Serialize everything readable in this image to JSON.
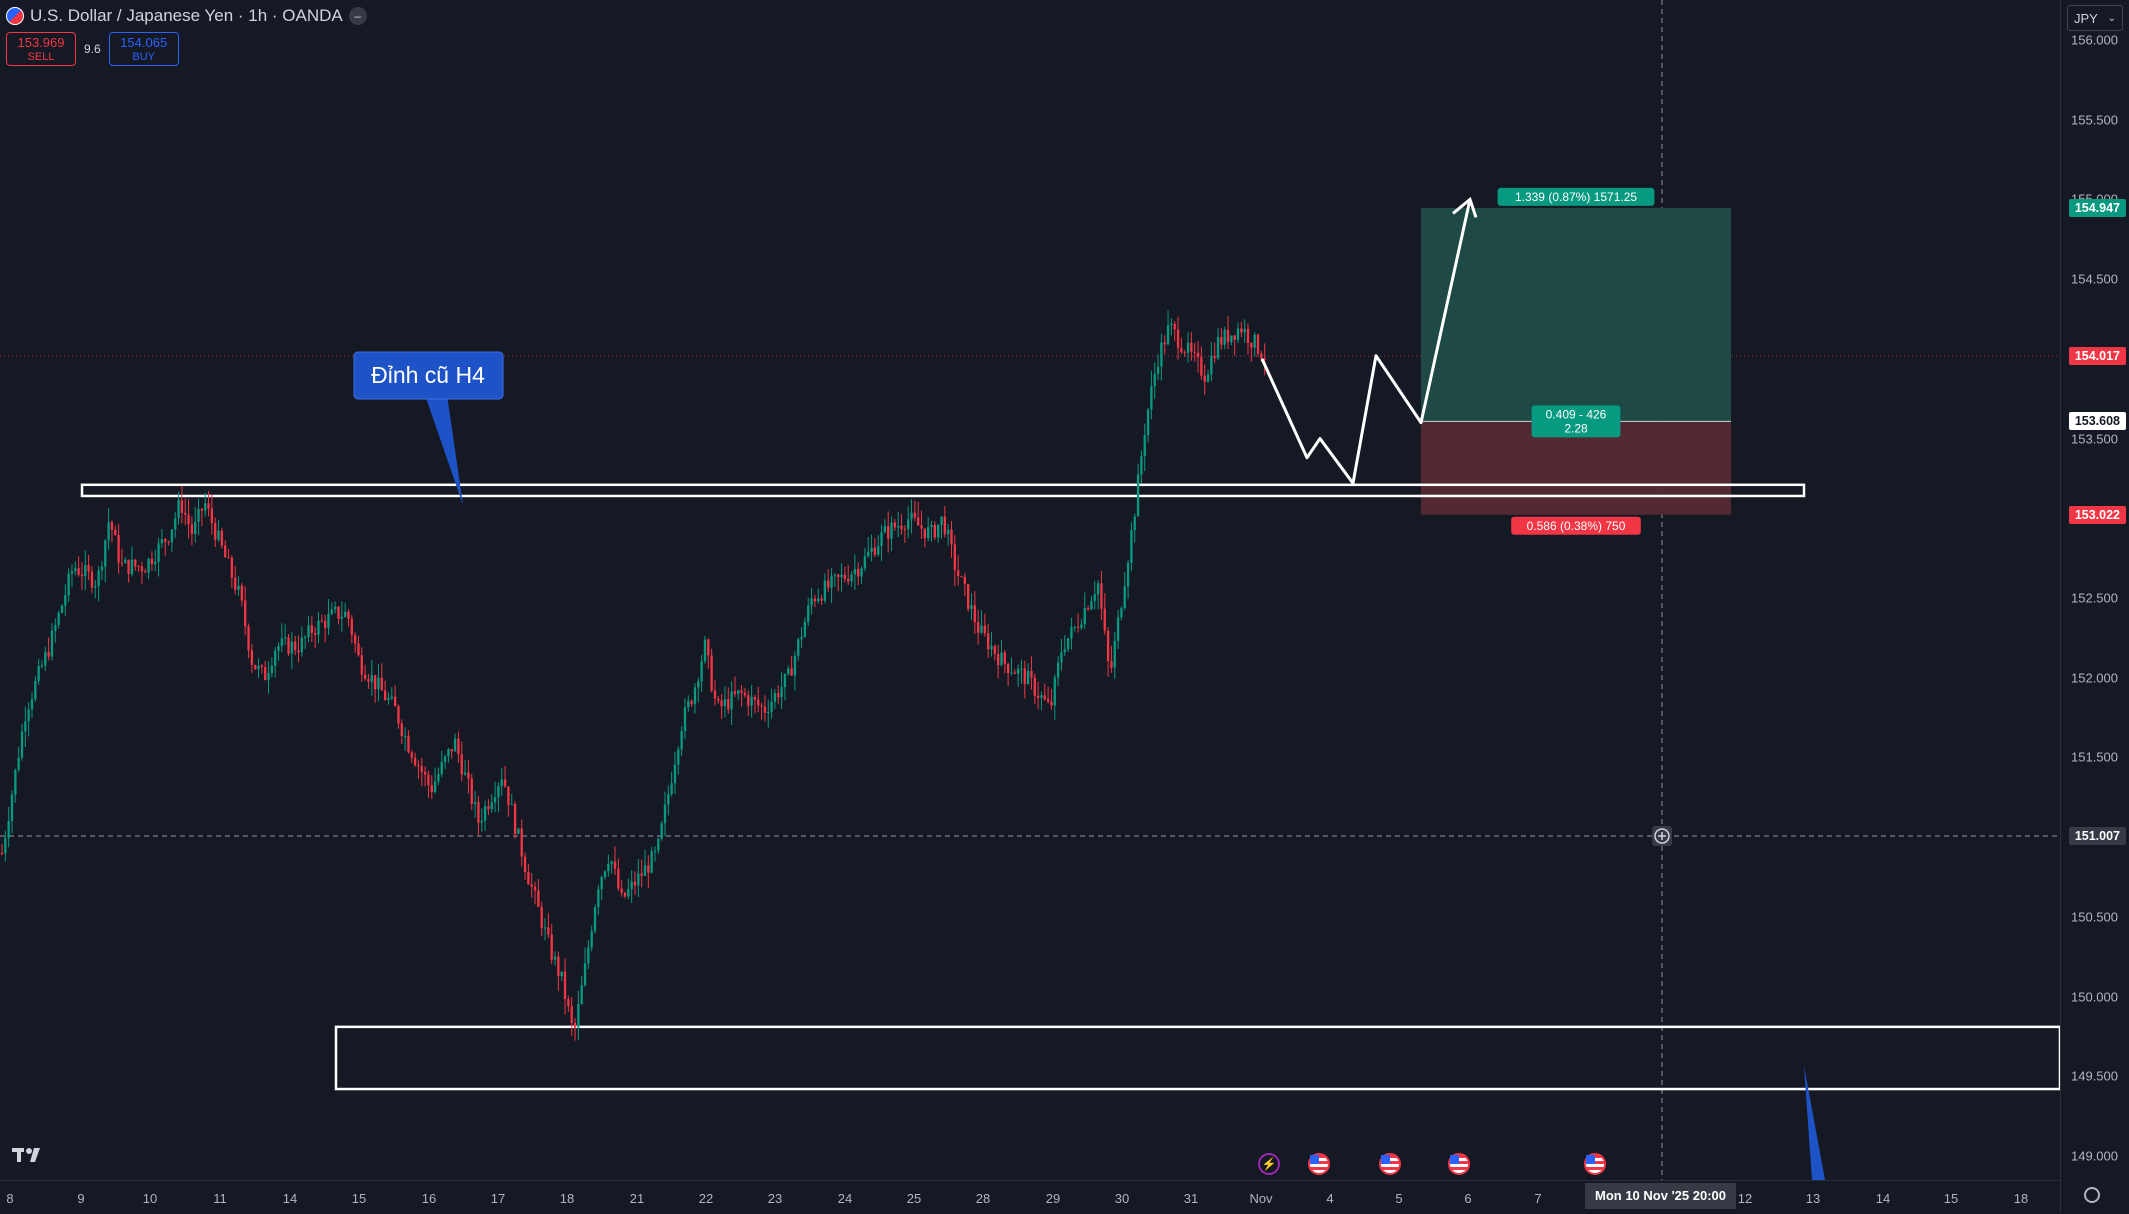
{
  "header": {
    "symbol_title": "U.S. Dollar / Japanese Yen · 1h · OANDA",
    "hide_icon": "minus-circle-icon",
    "sell_price": "153.969",
    "sell_label": "SELL",
    "spread": "9.6",
    "buy_price": "154.065",
    "buy_label": "BUY"
  },
  "currency_button": "JPY",
  "colors": {
    "background": "#151924",
    "up": "#089981",
    "down": "#f23645",
    "profit_zone": "#1f4c48",
    "loss_zone": "#552a35",
    "callout": "#1e53c7"
  },
  "chart_data": {
    "type": "candlestick",
    "symbol": "U.S. Dollar / Japanese Yen",
    "timeframe": "1h",
    "x_tick_labels": [
      "8",
      "9",
      "10",
      "11",
      "14",
      "15",
      "16",
      "17",
      "18",
      "21",
      "22",
      "23",
      "24",
      "25",
      "28",
      "29",
      "30",
      "31",
      "Nov",
      "4",
      "5",
      "6",
      "7",
      "11",
      "12",
      "13",
      "14",
      "15",
      "18"
    ],
    "y_ticks": [
      149.0,
      149.5,
      150.0,
      150.5,
      151.0,
      151.5,
      152.0,
      152.5,
      153.0,
      153.5,
      154.0,
      154.5,
      155.0,
      155.5,
      156.0
    ],
    "y_tick_labels": [
      "149.000",
      "149.500",
      "150.000",
      "150.500",
      "151.000",
      "151.500",
      "152.000",
      "152.500",
      "153.000",
      "153.500",
      "154.000",
      "154.500",
      "155.000",
      "155.500",
      "156.000"
    ],
    "ylim": [
      149.0,
      156.0
    ],
    "price_path": [
      [
        0,
        150.9
      ],
      [
        2,
        151.8
      ],
      [
        4,
        152.2
      ],
      [
        6,
        152.7
      ],
      [
        8,
        152.6
      ],
      [
        9,
        153.0
      ],
      [
        10,
        152.7
      ],
      [
        12,
        152.7
      ],
      [
        14,
        152.9
      ],
      [
        15,
        153.1
      ],
      [
        16,
        152.9
      ],
      [
        17,
        153.1
      ],
      [
        18,
        152.9
      ],
      [
        20,
        152.5
      ],
      [
        21,
        152.1
      ],
      [
        22,
        152.0
      ],
      [
        23,
        152.2
      ],
      [
        25,
        152.2
      ],
      [
        26,
        152.3
      ],
      [
        28,
        152.4
      ],
      [
        29,
        152.4
      ],
      [
        30,
        152.1
      ],
      [
        32,
        151.9
      ],
      [
        33,
        151.8
      ],
      [
        34,
        151.6
      ],
      [
        36,
        151.3
      ],
      [
        38,
        151.6
      ],
      [
        40,
        151.1
      ],
      [
        42,
        151.4
      ],
      [
        44,
        150.8
      ],
      [
        46,
        150.3
      ],
      [
        47,
        150.1
      ],
      [
        48,
        149.75
      ],
      [
        49,
        150.2
      ],
      [
        50,
        150.7
      ],
      [
        51,
        150.9
      ],
      [
        52,
        150.6
      ],
      [
        54,
        150.8
      ],
      [
        55,
        150.9
      ],
      [
        56,
        151.3
      ],
      [
        57,
        151.7
      ],
      [
        58,
        151.9
      ],
      [
        59,
        152.2
      ],
      [
        60,
        151.8
      ],
      [
        62,
        151.9
      ],
      [
        64,
        151.8
      ],
      [
        66,
        152.0
      ],
      [
        68,
        152.5
      ],
      [
        70,
        152.6
      ],
      [
        72,
        152.7
      ],
      [
        74,
        152.9
      ],
      [
        76,
        153.0
      ],
      [
        78,
        152.9
      ],
      [
        79,
        153.0
      ],
      [
        80,
        152.7
      ],
      [
        82,
        152.3
      ],
      [
        84,
        152.1
      ],
      [
        86,
        152.0
      ],
      [
        88,
        151.8
      ],
      [
        89,
        152.2
      ],
      [
        90,
        152.3
      ],
      [
        92,
        152.6
      ],
      [
        93,
        152.0
      ],
      [
        94,
        152.5
      ],
      [
        95,
        153.0
      ],
      [
        96,
        153.6
      ],
      [
        97,
        154.0
      ],
      [
        98,
        154.2
      ],
      [
        100,
        154.0
      ],
      [
        101,
        153.9
      ],
      [
        102,
        154.1
      ],
      [
        104,
        154.2
      ],
      [
        106,
        154.02
      ]
    ],
    "candle_count": 380,
    "current_price": 154.017,
    "crosshair_price": 151.007,
    "crosshair_date": "Mon 10 Nov '25   20:00",
    "price_badges": [
      {
        "label": "154.947",
        "value": 154.947,
        "bg": "#089981",
        "fg": "#ffffff"
      },
      {
        "label": "154.017",
        "value": 154.017,
        "bg": "#f23645",
        "fg": "#ffffff"
      },
      {
        "label": "153.608",
        "value": 153.608,
        "bg": "#ffffff",
        "fg": "#131722"
      },
      {
        "label": "153.022",
        "value": 153.022,
        "bg": "#f23645",
        "fg": "#ffffff"
      },
      {
        "label": "151.007",
        "value": 151.007,
        "bg": "#363a45",
        "fg": "#ffffff"
      }
    ],
    "long_position": {
      "entry": 153.608,
      "target": 154.947,
      "stop": 153.022,
      "target_label": "1.339 (0.87%) 1571.25",
      "entry_label_1": "0.409 - 426",
      "entry_label_2": "2.28",
      "stop_label": "0.586 (0.38%) 750"
    },
    "zones": [
      {
        "name": "resistance",
        "top": 153.21,
        "bottom": 153.14
      },
      {
        "name": "support",
        "top": 149.81,
        "bottom": 149.42
      }
    ],
    "callout_text": "Đỉnh cũ H4",
    "projection_path": [
      [
        154.0
      ],
      [
        153.38
      ],
      [
        153.5
      ],
      [
        153.22
      ],
      [
        154.02
      ],
      [
        153.6
      ],
      [
        155.0
      ]
    ]
  },
  "events": [
    {
      "icon": "lightning-icon",
      "x_label": "Nov"
    },
    {
      "icon": "us-flag-icon",
      "x_label": "4"
    },
    {
      "icon": "us-flag-icon",
      "x_label": "5"
    },
    {
      "icon": "us-flag-icon",
      "x_label": "6"
    },
    {
      "icon": "us-flag-icon",
      "x_label": "11"
    }
  ]
}
